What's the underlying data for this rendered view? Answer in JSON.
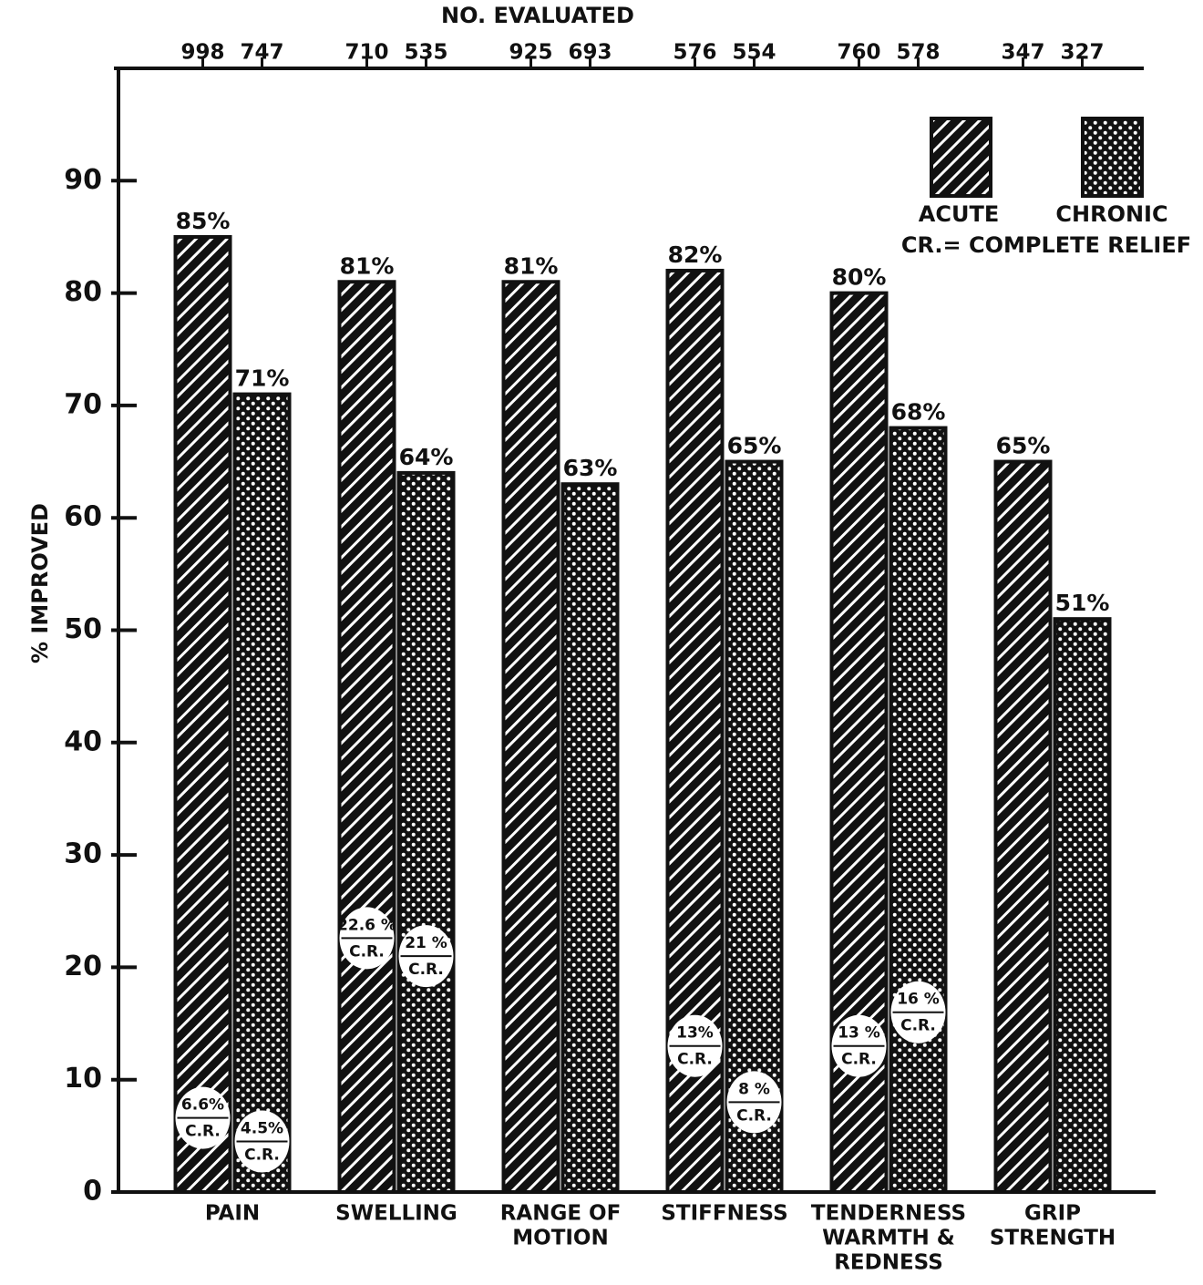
{
  "chart_data": {
    "type": "bar",
    "top_axis_title": "NO. EVALUATED",
    "ylabel": "% IMPROVED",
    "categories": [
      [
        "PAIN"
      ],
      [
        "SWELLING"
      ],
      [
        "RANGE OF",
        "MOTION"
      ],
      [
        "STIFFNESS"
      ],
      [
        "TENDERNESS",
        "WARMTH &",
        "REDNESS"
      ],
      [
        "GRIP",
        "STRENGTH"
      ]
    ],
    "series": [
      {
        "name": "ACUTE",
        "color": "#111111",
        "values": [
          85,
          81,
          81,
          82,
          80,
          65
        ],
        "value_labels": [
          "85%",
          "81%",
          "81%",
          "82%",
          "80%",
          "65%"
        ],
        "n_evaluated": [
          998,
          710,
          925,
          576,
          760,
          347
        ],
        "complete_relief": [
          6.6,
          22.6,
          null,
          13,
          13,
          null
        ],
        "complete_relief_labels": [
          "6.6%",
          "22.6 %",
          null,
          "13%",
          "13 %",
          null
        ]
      },
      {
        "name": "CHRONIC",
        "color": "#111111",
        "values": [
          71,
          64,
          63,
          65,
          68,
          51
        ],
        "value_labels": [
          "71%",
          "64%",
          "63%",
          "65%",
          "68%",
          "51%"
        ],
        "n_evaluated": [
          747,
          535,
          693,
          554,
          578,
          327
        ],
        "complete_relief": [
          4.5,
          21,
          null,
          8,
          16,
          null
        ],
        "complete_relief_labels": [
          "4.5%",
          "21 %",
          null,
          "8 %",
          "16 %",
          null
        ]
      }
    ],
    "complete_relief_label": "C.R.",
    "legend_note": "CR.= COMPLETE RELIEF",
    "legend_position": "upper right",
    "ylim": [
      0,
      100
    ],
    "yticks": [
      0,
      10,
      20,
      30,
      40,
      50,
      60,
      70,
      80,
      90
    ]
  }
}
